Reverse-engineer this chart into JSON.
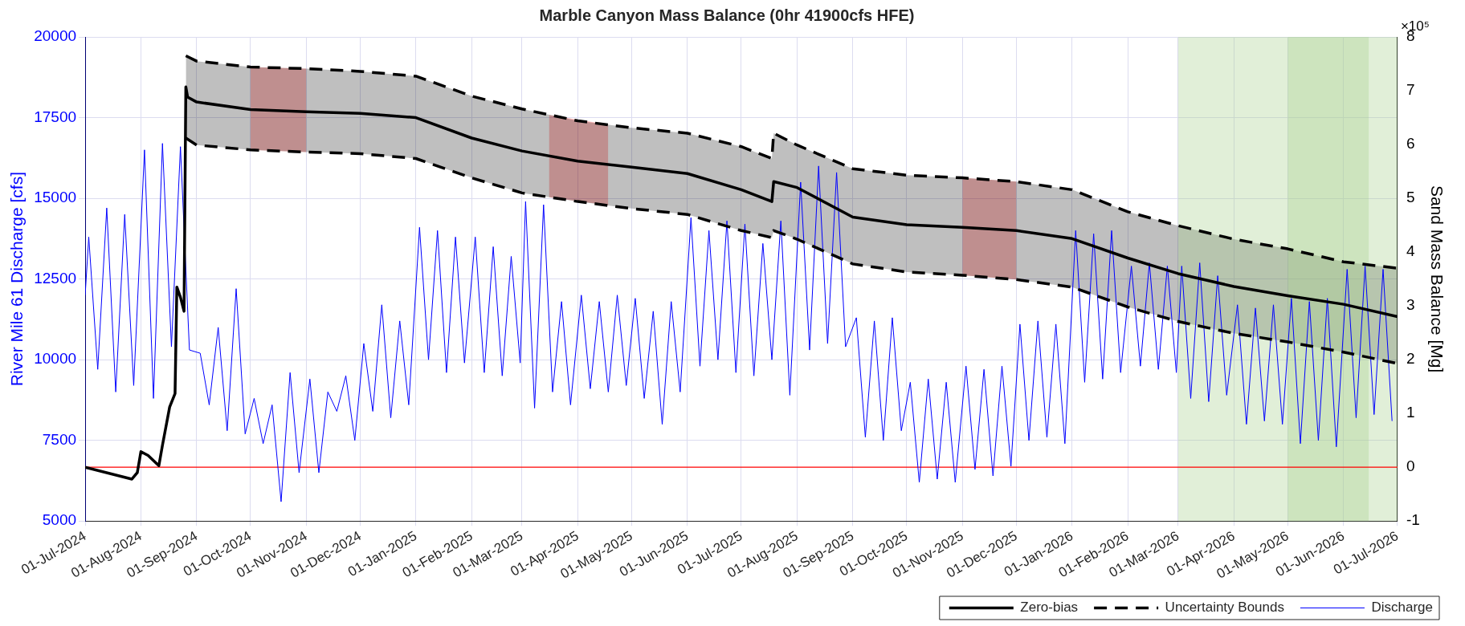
{
  "chart_data": {
    "type": "line",
    "title": "Marble Canyon Mass Balance (0hr 41900cfs HFE)",
    "ylabel": "River Mile 61 Discharge [cfs]",
    "y2label": "Sand Mass Balance [Mg]",
    "xlim": [
      "2024-07-01",
      "2026-07-01"
    ],
    "xticks": [
      {
        "value": "2024-07-01",
        "label": "01-Jul-2024"
      },
      {
        "value": "2024-08-01",
        "label": "01-Aug-2024"
      },
      {
        "value": "2024-09-01",
        "label": "01-Sep-2024"
      },
      {
        "value": "2024-10-01",
        "label": "01-Oct-2024"
      },
      {
        "value": "2024-11-01",
        "label": "01-Nov-2024"
      },
      {
        "value": "2024-12-01",
        "label": "01-Dec-2024"
      },
      {
        "value": "2025-01-01",
        "label": "01-Jan-2025"
      },
      {
        "value": "2025-02-01",
        "label": "01-Feb-2025"
      },
      {
        "value": "2025-03-01",
        "label": "01-Mar-2025"
      },
      {
        "value": "2025-04-01",
        "label": "01-Apr-2025"
      },
      {
        "value": "2025-05-01",
        "label": "01-May-2025"
      },
      {
        "value": "2025-06-01",
        "label": "01-Jun-2025"
      },
      {
        "value": "2025-07-01",
        "label": "01-Jul-2025"
      },
      {
        "value": "2025-08-01",
        "label": "01-Aug-2025"
      },
      {
        "value": "2025-09-01",
        "label": "01-Sep-2025"
      },
      {
        "value": "2025-10-01",
        "label": "01-Oct-2025"
      },
      {
        "value": "2025-11-01",
        "label": "01-Nov-2025"
      },
      {
        "value": "2025-12-01",
        "label": "01-Dec-2025"
      },
      {
        "value": "2026-01-01",
        "label": "01-Jan-2026"
      },
      {
        "value": "2026-02-01",
        "label": "01-Feb-2026"
      },
      {
        "value": "2026-03-01",
        "label": "01-Mar-2026"
      },
      {
        "value": "2026-04-01",
        "label": "01-Apr-2026"
      },
      {
        "value": "2026-05-01",
        "label": "01-May-2026"
      },
      {
        "value": "2026-06-01",
        "label": "01-Jun-2026"
      },
      {
        "value": "2026-07-01",
        "label": "01-Jul-2026"
      }
    ],
    "ylim": [
      5000,
      20000
    ],
    "yticks": [
      5000,
      7500,
      10000,
      12500,
      15000,
      17500,
      20000
    ],
    "y2lim": [
      -1,
      8
    ],
    "y2ticks": [
      -1,
      0,
      1,
      2,
      3,
      4,
      5,
      6,
      7,
      8
    ],
    "annotations": [
      "×10⁵"
    ],
    "grid": true,
    "legend": "bottom right",
    "marker": "none",
    "ref_lines": [
      {
        "axis": "y2",
        "value": 0,
        "color": "#ff0000"
      }
    ],
    "bands": [
      {
        "axis": "x",
        "from": "2026-03-01",
        "to": "2026-07-01",
        "color": "#a9d18e"
      },
      {
        "axis": "x",
        "from": "2026-05-01",
        "to": "2026-06-15",
        "color": "#a9d18e"
      }
    ],
    "series": [
      {
        "name": "Zero-bias",
        "color": "#000000",
        "axis": "y2",
        "line_style": "solid",
        "x": [
          "2024-07-01",
          "2024-07-27",
          "2024-07-30",
          "2024-08-01",
          "2024-08-05",
          "2024-08-11",
          "2024-08-13",
          "2024-08-17",
          "2024-08-20",
          "2024-08-21",
          "2024-08-23",
          "2024-08-25",
          "2024-08-26",
          "2024-08-27",
          "2024-09-01",
          "2024-10-01",
          "2024-11-01",
          "2024-12-01",
          "2025-01-01",
          "2025-02-01",
          "2025-03-01",
          "2025-04-01",
          "2025-05-01",
          "2025-06-01",
          "2025-07-01",
          "2025-07-18",
          "2025-07-19",
          "2025-08-01",
          "2025-09-01",
          "2025-10-01",
          "2025-11-01",
          "2025-12-01",
          "2026-01-01",
          "2026-02-01",
          "2026-03-01",
          "2026-04-01",
          "2026-05-01",
          "2026-06-01",
          "2026-07-01"
        ],
        "values": [
          0,
          -0.22,
          -0.1,
          0.29,
          0.22,
          0.03,
          0.41,
          1.12,
          1.37,
          3.35,
          3.16,
          2.9,
          7.07,
          6.88,
          6.79,
          6.65,
          6.61,
          6.58,
          6.5,
          6.12,
          5.88,
          5.69,
          5.58,
          5.46,
          5.16,
          4.94,
          5.31,
          5.2,
          4.65,
          4.51,
          4.46,
          4.4,
          4.25,
          3.89,
          3.6,
          3.36,
          3.19,
          3.03,
          2.8
        ],
        "lower": [
          null,
          null,
          null,
          null,
          null,
          null,
          null,
          null,
          null,
          null,
          null,
          null,
          6.12,
          6.1,
          5.99,
          5.9,
          5.86,
          5.83,
          5.74,
          5.38,
          5.1,
          4.94,
          4.81,
          4.7,
          4.4,
          4.27,
          4.4,
          4.24,
          3.78,
          3.63,
          3.57,
          3.49,
          3.35,
          2.98,
          2.71,
          2.49,
          2.33,
          2.14,
          1.93
        ],
        "upper": [
          null,
          null,
          null,
          null,
          null,
          null,
          null,
          null,
          null,
          null,
          null,
          null,
          7.65,
          7.63,
          7.55,
          7.44,
          7.41,
          7.36,
          7.27,
          6.9,
          6.66,
          6.44,
          6.31,
          6.21,
          5.96,
          5.74,
          6.21,
          5.99,
          5.55,
          5.43,
          5.38,
          5.31,
          5.16,
          4.75,
          4.49,
          4.24,
          4.06,
          3.82,
          3.7
        ]
      },
      {
        "type": "line",
        "color": "#ff0000",
        "axis": "y2",
        "x": [
          "2024-10-01",
          "2024-11-01"
        ],
        "values": [
          null,
          null
        ],
        "lower": [
          5.9,
          5.86
        ],
        "upper": [
          7.44,
          7.41
        ]
      },
      {
        "type": "line",
        "color": "#ff0000",
        "axis": "y2",
        "x": [
          "2025-03-16",
          "2025-04-18"
        ],
        "values": [
          null,
          null
        ],
        "lower": [
          5.02,
          4.87
        ],
        "upper": [
          6.55,
          6.37
        ]
      },
      {
        "type": "line",
        "color": "#ff0000",
        "axis": "y2",
        "x": [
          "2025-11-01",
          "2025-12-01"
        ],
        "values": [
          null,
          null
        ],
        "lower": [
          3.57,
          3.49
        ],
        "upper": [
          5.38,
          5.31
        ]
      },
      {
        "name": "Uncertainty Bounds",
        "color": "#000000",
        "axis": "y2",
        "line_style": "dashed",
        "x": [
          "2024-08-26",
          "2024-09-01",
          "2024-10-01",
          "2024-11-01",
          "2024-12-01",
          "2025-01-01",
          "2025-02-01",
          "2025-03-01",
          "2025-04-01",
          "2025-05-01",
          "2025-06-01",
          "2025-07-01",
          "2025-07-18",
          "2025-07-19",
          "2025-08-01",
          "2025-09-01",
          "2025-10-01",
          "2025-11-01",
          "2025-12-01",
          "2026-01-01",
          "2026-02-01",
          "2026-03-01",
          "2026-04-01",
          "2026-05-01",
          "2026-06-01",
          "2026-07-01"
        ],
        "values": [
          7.65,
          7.55,
          7.44,
          7.41,
          7.36,
          7.27,
          6.9,
          6.66,
          6.44,
          6.31,
          6.21,
          5.96,
          5.74,
          6.21,
          5.99,
          5.55,
          5.43,
          5.38,
          5.31,
          5.16,
          4.75,
          4.49,
          4.24,
          4.06,
          3.82,
          3.7
        ]
      },
      {
        "color": "#000000",
        "axis": "y2",
        "line_style": "dashed",
        "x": [
          "2024-08-26",
          "2024-09-01",
          "2024-10-01",
          "2024-11-01",
          "2024-12-01",
          "2025-01-01",
          "2025-02-01",
          "2025-03-01",
          "2025-04-01",
          "2025-05-01",
          "2025-06-01",
          "2025-07-01",
          "2025-07-18",
          "2025-07-19",
          "2025-08-01",
          "2025-09-01",
          "2025-10-01",
          "2025-11-01",
          "2025-12-01",
          "2026-01-01",
          "2026-02-01",
          "2026-03-01",
          "2026-04-01",
          "2026-05-01",
          "2026-06-01",
          "2026-07-01"
        ],
        "values": [
          6.12,
          5.99,
          5.9,
          5.86,
          5.83,
          5.74,
          5.38,
          5.1,
          4.94,
          4.81,
          4.7,
          4.4,
          4.27,
          4.4,
          4.24,
          3.78,
          3.63,
          3.57,
          3.49,
          3.35,
          2.98,
          2.71,
          2.49,
          2.33,
          2.14,
          1.93
        ]
      },
      {
        "name": "Discharge",
        "color": "#0000ff",
        "axis": "y",
        "line_style": "solid",
        "x": [
          "2024-07-01",
          "2024-07-03",
          "2024-07-08",
          "2024-07-13",
          "2024-07-18",
          "2024-07-23",
          "2024-07-28",
          "2024-08-03",
          "2024-08-08",
          "2024-08-13",
          "2024-08-18",
          "2024-08-23",
          "2024-08-28",
          "2024-09-03",
          "2024-09-08",
          "2024-09-13",
          "2024-09-18",
          "2024-09-23",
          "2024-09-28",
          "2024-10-03",
          "2024-10-08",
          "2024-10-13",
          "2024-10-18",
          "2024-10-23",
          "2024-10-28",
          "2024-11-03",
          "2024-11-08",
          "2024-11-13",
          "2024-11-18",
          "2024-11-23",
          "2024-11-28",
          "2024-12-03",
          "2024-12-08",
          "2024-12-13",
          "2024-12-18",
          "2024-12-23",
          "2024-12-28",
          "2025-01-03",
          "2025-01-08",
          "2025-01-13",
          "2025-01-18",
          "2025-01-23",
          "2025-01-28",
          "2025-02-03",
          "2025-02-08",
          "2025-02-13",
          "2025-02-18",
          "2025-02-23",
          "2025-02-28",
          "2025-03-03",
          "2025-03-08",
          "2025-03-13",
          "2025-03-18",
          "2025-03-23",
          "2025-03-28",
          "2025-04-03",
          "2025-04-08",
          "2025-04-13",
          "2025-04-18",
          "2025-04-23",
          "2025-04-28",
          "2025-05-03",
          "2025-05-08",
          "2025-05-13",
          "2025-05-18",
          "2025-05-23",
          "2025-05-28",
          "2025-06-03",
          "2025-06-08",
          "2025-06-13",
          "2025-06-18",
          "2025-06-23",
          "2025-06-28",
          "2025-07-03",
          "2025-07-08",
          "2025-07-13",
          "2025-07-18",
          "2025-07-23",
          "2025-07-28",
          "2025-08-03",
          "2025-08-08",
          "2025-08-13",
          "2025-08-18",
          "2025-08-23",
          "2025-08-28",
          "2025-09-03",
          "2025-09-08",
          "2025-09-13",
          "2025-09-18",
          "2025-09-23",
          "2025-09-28",
          "2025-10-03",
          "2025-10-08",
          "2025-10-13",
          "2025-10-18",
          "2025-10-23",
          "2025-10-28",
          "2025-11-03",
          "2025-11-08",
          "2025-11-13",
          "2025-11-18",
          "2025-11-23",
          "2025-11-28",
          "2025-12-03",
          "2025-12-08",
          "2025-12-13",
          "2025-12-18",
          "2025-12-23",
          "2025-12-28",
          "2026-01-03",
          "2026-01-08",
          "2026-01-13",
          "2026-01-18",
          "2026-01-23",
          "2026-01-28",
          "2026-02-03",
          "2026-02-08",
          "2026-02-13",
          "2026-02-18",
          "2026-02-23",
          "2026-02-28",
          "2026-03-03",
          "2026-03-08",
          "2026-03-13",
          "2026-03-18",
          "2026-03-23",
          "2026-03-28",
          "2026-04-03",
          "2026-04-08",
          "2026-04-13",
          "2026-04-18",
          "2026-04-23",
          "2026-04-28",
          "2026-05-03",
          "2026-05-08",
          "2026-05-13",
          "2026-05-18",
          "2026-05-23",
          "2026-05-28",
          "2026-06-03",
          "2026-06-08",
          "2026-06-13",
          "2026-06-18",
          "2026-06-23",
          "2026-06-28"
        ],
        "values": [
          12000,
          13800,
          9700,
          14700,
          9000,
          14500,
          9200,
          16500,
          8800,
          16700,
          10400,
          16600,
          10300,
          10200,
          8600,
          11000,
          7800,
          12200,
          7700,
          8800,
          7400,
          8600,
          5600,
          9600,
          6500,
          9400,
          6500,
          9000,
          8400,
          9500,
          7500,
          10500,
          8400,
          11700,
          8200,
          11200,
          8600,
          14100,
          10000,
          14000,
          9600,
          13800,
          9900,
          13800,
          9600,
          13500,
          9500,
          13200,
          9900,
          14900,
          8500,
          14800,
          9000,
          11800,
          8600,
          12000,
          9100,
          11800,
          9000,
          12000,
          9200,
          11900,
          8800,
          11500,
          8000,
          11800,
          9000,
          14400,
          9800,
          14000,
          10000,
          14300,
          9600,
          14200,
          9500,
          13600,
          10000,
          14300,
          8900,
          15500,
          10300,
          16000,
          10500,
          15800,
          10400,
          11300,
          7600,
          11200,
          7500,
          11300,
          7800,
          9300,
          6200,
          9400,
          6300,
          9300,
          6200,
          9800,
          6600,
          9700,
          6400,
          9800,
          6700,
          11100,
          7500,
          11200,
          7600,
          11100,
          7400,
          14000,
          9300,
          13900,
          9400,
          14000,
          9600,
          12900,
          9800,
          13000,
          9700,
          12900,
          9600,
          12900,
          8800,
          13000,
          8700,
          12600,
          8900,
          11700,
          8000,
          11600,
          8100,
          11700,
          8000,
          11900,
          7400,
          11800,
          7500,
          11900,
          7300,
          12800,
          8200,
          12900,
          8300,
          12800,
          8100
        ]
      }
    ]
  }
}
